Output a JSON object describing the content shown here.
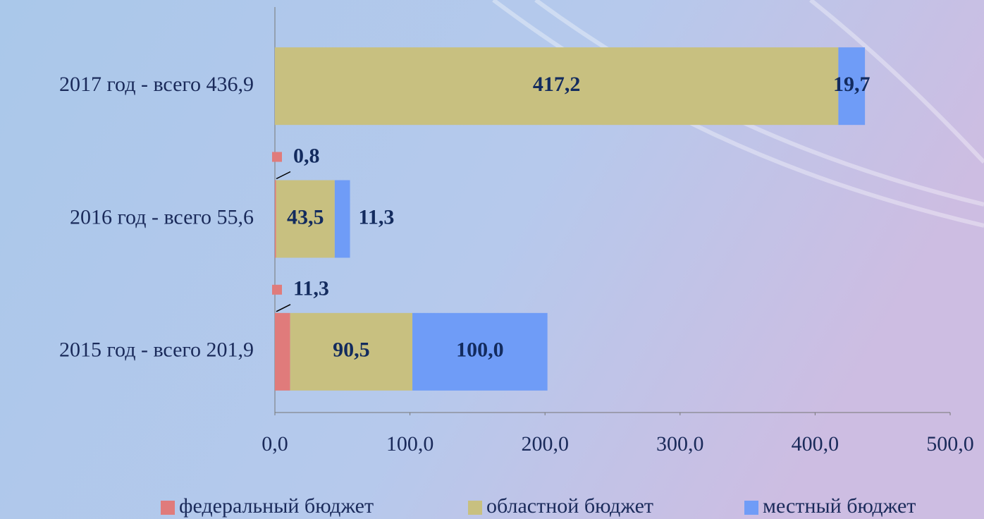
{
  "chart_data": {
    "type": "stacked-bar-horizontal",
    "categories": [
      "2017 год - всего 436,9",
      "2016 год - всего 55,6",
      "2015 год - всего 201,9"
    ],
    "series": [
      {
        "name": "федеральный бюджет",
        "color": "#e07b7b",
        "values": [
          null,
          0.8,
          11.3
        ],
        "value_labels": [
          null,
          "0,8",
          "11,3"
        ]
      },
      {
        "name": "областной бюджет",
        "color": "#c8c080",
        "values": [
          417.2,
          43.5,
          90.5
        ],
        "value_labels": [
          "417,2",
          "43,5",
          "90,5"
        ]
      },
      {
        "name": "местный бюджет",
        "color": "#6f9cf7",
        "values": [
          19.7,
          11.3,
          100.0
        ],
        "value_labels": [
          "19,7",
          "11,3",
          "100,0"
        ]
      }
    ],
    "xlim": [
      0,
      500
    ],
    "xticks": [
      {
        "value": 0,
        "label": "0,0"
      },
      {
        "value": 100,
        "label": "100,0"
      },
      {
        "value": 200,
        "label": "200,0"
      },
      {
        "value": 300,
        "label": "300,0"
      },
      {
        "value": 400,
        "label": "400,0"
      },
      {
        "value": 500,
        "label": "500,0"
      }
    ],
    "legend": "bottom"
  }
}
